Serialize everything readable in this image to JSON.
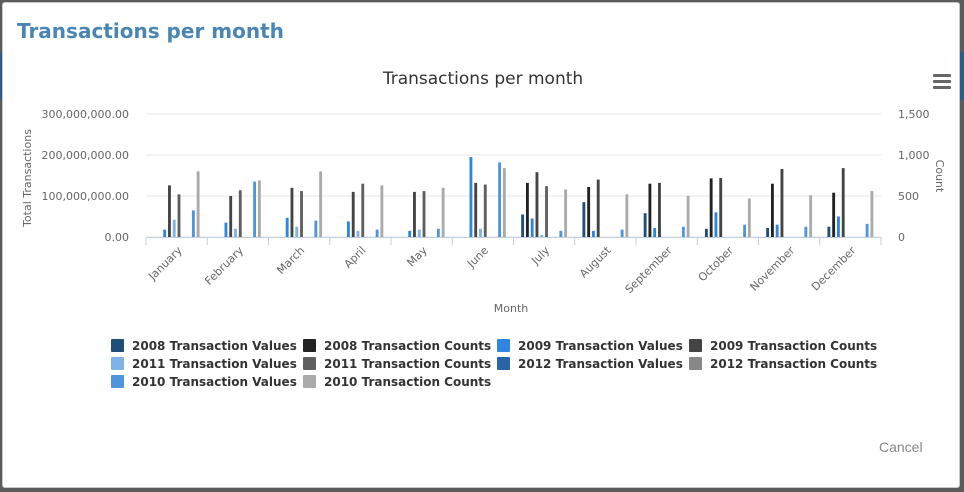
{
  "dialog": {
    "title": "Transactions per month",
    "cancel_label": "Cancel"
  },
  "colors": {
    "background_overlay": "#5b5b5b",
    "title": "#4a86b4",
    "axis_text": "#666666"
  },
  "chart_data": {
    "type": "bar",
    "title": "Transactions per month",
    "xlabel": "Month",
    "ylabel_left": "Total Transactions",
    "ylabel_right": "Count",
    "left_ticks": [
      "0.00",
      "100,000,000.00",
      "200,000,000.00",
      "300,000,000.00"
    ],
    "right_ticks": [
      "0",
      "500",
      "1,000",
      "1,500"
    ],
    "ylim_left": [
      0,
      300000000
    ],
    "ylim_right": [
      0,
      1500
    ],
    "categories": [
      "January",
      "February",
      "March",
      "April",
      "May",
      "June",
      "July",
      "August",
      "September",
      "October",
      "November",
      "December"
    ],
    "legend_position": "bottom",
    "series": [
      {
        "name": "2008 Transaction Values",
        "axis": "left",
        "color": "#1f4e79",
        "values": [
          0,
          0,
          0,
          0,
          0,
          0,
          55000000,
          85000000,
          58000000,
          20000000,
          22000000,
          25000000
        ]
      },
      {
        "name": "2008 Transaction Counts",
        "axis": "right",
        "color": "#222222",
        "values": [
          0,
          0,
          0,
          0,
          0,
          0,
          660,
          610,
          650,
          715,
          650,
          540
        ]
      },
      {
        "name": "2009 Transaction Values",
        "axis": "left",
        "color": "#2e86de",
        "values": [
          18000000,
          35000000,
          47000000,
          38000000,
          15000000,
          195000000,
          45000000,
          15000000,
          22000000,
          60000000,
          30000000,
          50000000
        ]
      },
      {
        "name": "2009 Transaction Counts",
        "axis": "right",
        "color": "#444444",
        "values": [
          630,
          500,
          600,
          550,
          550,
          660,
          790,
          700,
          660,
          720,
          830,
          840
        ]
      },
      {
        "name": "2011 Transaction Values",
        "axis": "left",
        "color": "#7fb3e5",
        "values": [
          42000000,
          20000000,
          25000000,
          15000000,
          18000000,
          20000000,
          5000000,
          0,
          0,
          0,
          0,
          0
        ]
      },
      {
        "name": "2011 Transaction Counts",
        "axis": "right",
        "color": "#5f5f5f",
        "values": [
          520,
          570,
          560,
          650,
          560,
          640,
          620,
          0,
          0,
          0,
          0,
          0
        ]
      },
      {
        "name": "2012 Transaction Values",
        "axis": "left",
        "color": "#2764a8",
        "values": [
          0,
          0,
          0,
          0,
          0,
          0,
          0,
          0,
          0,
          0,
          0,
          0
        ]
      },
      {
        "name": "2012 Transaction Counts",
        "axis": "right",
        "color": "#888888",
        "values": [
          0,
          0,
          0,
          0,
          0,
          0,
          0,
          0,
          0,
          0,
          0,
          0
        ]
      },
      {
        "name": "2010 Transaction Values",
        "axis": "left",
        "color": "#4f95dd",
        "values": [
          65000000,
          135000000,
          40000000,
          18000000,
          20000000,
          182000000,
          15000000,
          18000000,
          25000000,
          30000000,
          25000000,
          32000000
        ]
      },
      {
        "name": "2010 Transaction Counts",
        "axis": "right",
        "color": "#aaaaaa",
        "values": [
          800,
          690,
          800,
          630,
          600,
          840,
          580,
          520,
          500,
          470,
          510,
          560
        ]
      }
    ]
  }
}
